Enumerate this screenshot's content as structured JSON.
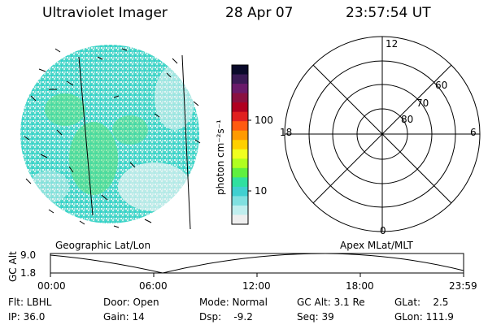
{
  "header": {
    "title": "Ultraviolet Imager",
    "date": "28 Apr 07",
    "time": "23:57:54 UT"
  },
  "colorbar": {
    "unit_label": "photon cm⁻²s⁻¹",
    "ticks": [
      "100",
      "10"
    ],
    "colors": [
      "#0a0a2a",
      "#3a1a55",
      "#6a1a6a",
      "#8a1040",
      "#b00020",
      "#e02020",
      "#ff5a10",
      "#ff9a00",
      "#ffd000",
      "#f0ff20",
      "#b0ff20",
      "#60f040",
      "#30e0a0",
      "#40d0d0",
      "#80e0e0",
      "#c0eeee",
      "#eeeeee"
    ]
  },
  "map": {
    "left_label": "Geographic Lat/Lon",
    "right_label": "Apex MLat/MLT"
  },
  "polar": {
    "mlt_labels": {
      "top": "12",
      "left": "18",
      "right": "6",
      "bottom": "0"
    },
    "lat_labels": [
      "60",
      "70",
      "80"
    ]
  },
  "altitude_plot": {
    "ylabel": "GC Alt",
    "y_ticks": [
      "9.0",
      "1.8"
    ],
    "x_ticks": [
      "00:00",
      "06:00",
      "12:00",
      "18:00",
      "23:59"
    ]
  },
  "info": {
    "flt": "Flt: LBHL",
    "ip": "IP: 36.0",
    "door": "Door: Open",
    "gain": "Gain: 14",
    "mode": "Mode: Normal",
    "dsp": "Dsp:    -9.2",
    "gc_alt": "GC Alt: 3.1 Re",
    "seq": "Seq: 39",
    "glat": "GLat:    2.5",
    "glon": "GLon: 111.9"
  }
}
